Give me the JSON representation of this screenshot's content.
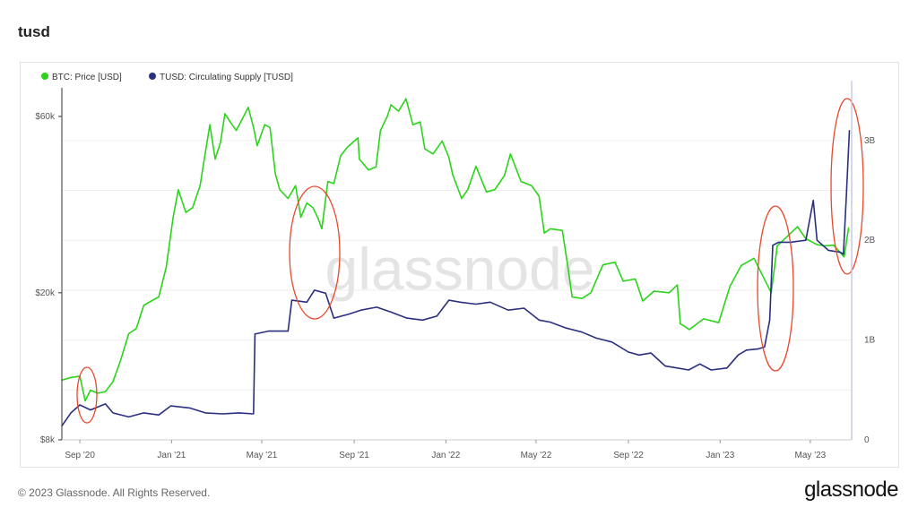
{
  "page": {
    "title": "tusd"
  },
  "footer": {
    "copyright": "© 2023 Glassnode. All Rights Reserved.",
    "logo_text": "glassnode"
  },
  "watermark": "glassnode",
  "colors": {
    "btc_price": "#2bd41a",
    "tusd_supply": "#2b2f7f",
    "highlight_ellipse": "#e8482c",
    "grid": "#eeeeee",
    "axis_text": "#555555"
  },
  "chart_data": {
    "type": "line",
    "title": "tusd",
    "x_tick_labels": [
      "Sep '20",
      "Jan '21",
      "May '21",
      "Sep '21",
      "Jan '22",
      "May '22",
      "Sep '22",
      "Jan '23",
      "May '23"
    ],
    "x_tick_dates": [
      "2020-09-01",
      "2021-01-01",
      "2021-05-01",
      "2021-09-01",
      "2022-01-01",
      "2022-05-01",
      "2022-09-01",
      "2023-01-01",
      "2023-05-01"
    ],
    "xlim": [
      "2020-08-08",
      "2023-06-25"
    ],
    "y_left": {
      "scale": "log",
      "ylim": [
        8000,
        75000
      ],
      "tick_labels": [
        "$8k",
        "$20k",
        "$60k"
      ],
      "tick_values": [
        8000,
        20000,
        60000
      ]
    },
    "y_right": {
      "scale": "linear",
      "ylim": [
        0,
        3600000000
      ],
      "tick_labels": [
        "0",
        "1B",
        "2B",
        "3B"
      ],
      "tick_values": [
        0,
        1000000000,
        2000000000,
        3000000000
      ]
    },
    "legend": {
      "placement": "top-left",
      "entries": [
        "BTC: Price [USD]",
        "TUSD: Circulating Supply [TUSD]"
      ]
    },
    "grid": true,
    "series": [
      {
        "name": "BTC: Price [USD]",
        "axis": "left",
        "x": [
          "2020-08-08",
          "2020-08-20",
          "2020-09-01",
          "2020-09-08",
          "2020-09-15",
          "2020-09-25",
          "2020-10-05",
          "2020-10-15",
          "2020-10-25",
          "2020-11-05",
          "2020-11-15",
          "2020-11-25",
          "2020-12-05",
          "2020-12-15",
          "2020-12-25",
          "2021-01-03",
          "2021-01-10",
          "2021-01-20",
          "2021-01-29",
          "2021-02-08",
          "2021-02-15",
          "2021-02-21",
          "2021-02-28",
          "2021-03-07",
          "2021-03-13",
          "2021-03-20",
          "2021-03-28",
          "2021-04-05",
          "2021-04-13",
          "2021-04-20",
          "2021-04-25",
          "2021-05-05",
          "2021-05-12",
          "2021-05-19",
          "2021-05-25",
          "2021-06-05",
          "2021-06-15",
          "2021-06-22",
          "2021-06-30",
          "2021-07-08",
          "2021-07-15",
          "2021-07-20",
          "2021-07-28",
          "2021-08-05",
          "2021-08-14",
          "2021-08-23",
          "2021-09-06",
          "2021-09-08",
          "2021-09-20",
          "2021-09-30",
          "2021-10-06",
          "2021-10-15",
          "2021-10-20",
          "2021-10-30",
          "2021-11-09",
          "2021-11-18",
          "2021-11-28",
          "2021-12-04",
          "2021-12-15",
          "2021-12-27",
          "2022-01-05",
          "2022-01-10",
          "2022-01-22",
          "2022-01-30",
          "2022-02-10",
          "2022-02-24",
          "2022-03-07",
          "2022-03-20",
          "2022-03-28",
          "2022-04-11",
          "2022-04-25",
          "2022-05-05",
          "2022-05-12",
          "2022-05-20",
          "2022-06-05",
          "2022-06-13",
          "2022-06-18",
          "2022-07-01",
          "2022-07-13",
          "2022-07-29",
          "2022-08-14",
          "2022-08-25",
          "2022-09-10",
          "2022-09-20",
          "2022-10-05",
          "2022-10-25",
          "2022-11-05",
          "2022-11-09",
          "2022-11-21",
          "2022-12-10",
          "2022-12-30",
          "2023-01-14",
          "2023-01-29",
          "2023-02-15",
          "2023-03-10",
          "2023-03-18",
          "2023-04-01",
          "2023-04-14",
          "2023-04-25",
          "2023-05-10",
          "2023-05-20",
          "2023-06-01",
          "2023-06-15",
          "2023-06-21"
        ],
        "values": [
          11600,
          11800,
          11900,
          10200,
          10900,
          10700,
          10800,
          11500,
          13100,
          15500,
          16000,
          18500,
          19000,
          19500,
          23500,
          32000,
          38000,
          33000,
          34000,
          39000,
          48000,
          57000,
          46000,
          51000,
          61000,
          58000,
          55000,
          59000,
          63500,
          56000,
          50000,
          57000,
          56000,
          42000,
          38000,
          36000,
          39000,
          32000,
          35000,
          34000,
          31800,
          29800,
          40000,
          39500,
          47000,
          49500,
          52500,
          46000,
          43000,
          43800,
          55000,
          60000,
          64500,
          62000,
          67000,
          57000,
          58000,
          49000,
          47500,
          51500,
          46500,
          41800,
          36000,
          38000,
          44000,
          37500,
          38000,
          41500,
          47500,
          40000,
          39000,
          36500,
          29000,
          29800,
          29500,
          23000,
          19500,
          19300,
          20000,
          23800,
          24200,
          21500,
          21800,
          19000,
          20200,
          20000,
          21000,
          16500,
          15900,
          17000,
          16600,
          20800,
          23700,
          24800,
          20000,
          26800,
          28500,
          30200,
          28000,
          27000,
          26800,
          26900,
          25000,
          30000
        ]
      },
      {
        "name": "TUSD: Circulating Supply [TUSD]",
        "axis": "right",
        "x": [
          "2020-08-08",
          "2020-08-20",
          "2020-09-01",
          "2020-09-15",
          "2020-09-25",
          "2020-10-05",
          "2020-10-15",
          "2020-11-05",
          "2020-11-25",
          "2020-12-15",
          "2020-12-31",
          "2021-01-25",
          "2021-02-15",
          "2021-03-10",
          "2021-04-01",
          "2021-04-20",
          "2021-04-22",
          "2021-05-10",
          "2021-06-05",
          "2021-06-10",
          "2021-06-30",
          "2021-07-10",
          "2021-07-25",
          "2021-08-05",
          "2021-08-25",
          "2021-09-10",
          "2021-10-01",
          "2021-10-20",
          "2021-11-10",
          "2021-12-01",
          "2021-12-20",
          "2022-01-05",
          "2022-01-20",
          "2022-02-10",
          "2022-03-01",
          "2022-03-25",
          "2022-04-15",
          "2022-05-05",
          "2022-05-20",
          "2022-06-10",
          "2022-07-01",
          "2022-07-20",
          "2022-08-10",
          "2022-09-01",
          "2022-09-15",
          "2022-10-01",
          "2022-10-20",
          "2022-11-05",
          "2022-11-20",
          "2022-12-05",
          "2022-12-20",
          "2023-01-10",
          "2023-01-25",
          "2023-02-05",
          "2023-02-20",
          "2023-03-01",
          "2023-03-08",
          "2023-03-12",
          "2023-03-20",
          "2023-04-05",
          "2023-04-25",
          "2023-05-05",
          "2023-05-10",
          "2023-05-25",
          "2023-06-10",
          "2023-06-14",
          "2023-06-18",
          "2023-06-22"
        ],
        "values": [
          140000000,
          270000000,
          350000000,
          300000000,
          330000000,
          360000000,
          270000000,
          230000000,
          270000000,
          250000000,
          340000000,
          320000000,
          270000000,
          260000000,
          270000000,
          260000000,
          1060000000,
          1090000000,
          1090000000,
          1400000000,
          1380000000,
          1500000000,
          1470000000,
          1220000000,
          1260000000,
          1300000000,
          1330000000,
          1280000000,
          1220000000,
          1200000000,
          1240000000,
          1400000000,
          1380000000,
          1360000000,
          1380000000,
          1300000000,
          1320000000,
          1200000000,
          1180000000,
          1120000000,
          1080000000,
          1020000000,
          980000000,
          880000000,
          850000000,
          870000000,
          740000000,
          720000000,
          700000000,
          760000000,
          700000000,
          720000000,
          850000000,
          900000000,
          910000000,
          930000000,
          1200000000,
          1950000000,
          1980000000,
          1980000000,
          2000000000,
          2400000000,
          2000000000,
          1900000000,
          1880000000,
          1860000000,
          2450000000,
          3100000000
        ]
      }
    ],
    "annotations": [
      {
        "shape": "ellipse",
        "around": "2020-09-10"
      },
      {
        "shape": "ellipse",
        "around": "2021-07-15"
      },
      {
        "shape": "ellipse",
        "around": "2023-03-12"
      },
      {
        "shape": "ellipse",
        "around": "2023-06-20"
      }
    ]
  }
}
